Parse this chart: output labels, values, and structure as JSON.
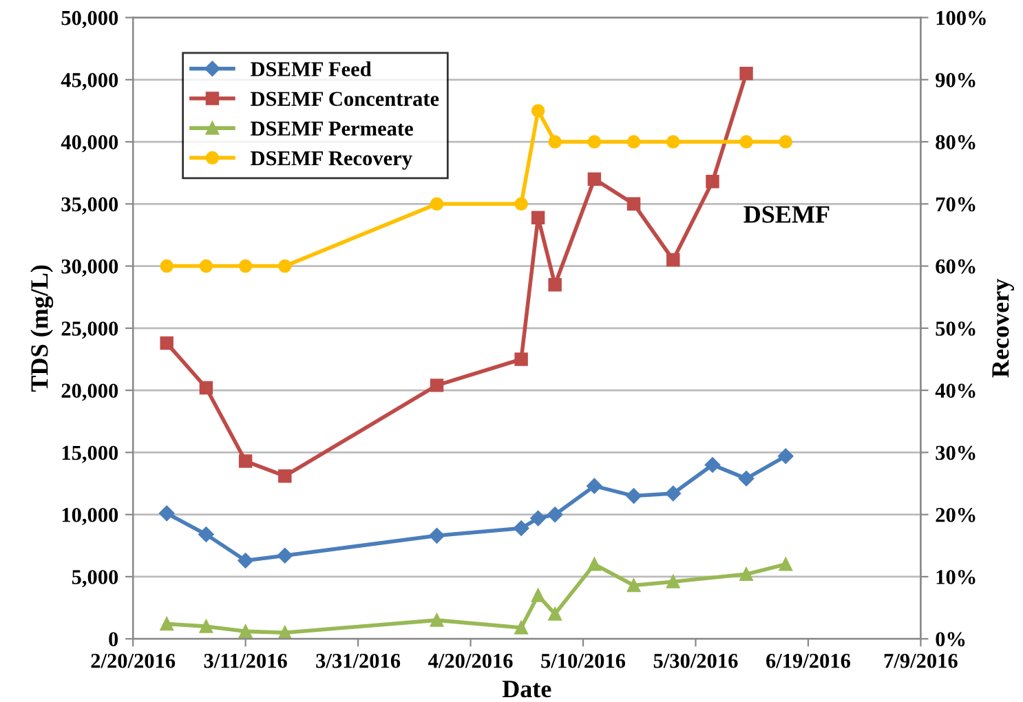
{
  "chart_data": {
    "type": "line",
    "xlabel": "Date",
    "ylabel": "TDS (mg/L)",
    "y2label": "Recovery",
    "x": [
      "2016-02-26",
      "2016-03-04",
      "2016-03-11",
      "2016-03-18",
      "2016-04-14",
      "2016-04-29",
      "2016-05-02",
      "2016-05-05",
      "2016-05-12",
      "2016-05-19",
      "2016-05-26",
      "2016-06-02",
      "2016-06-08",
      "2016-06-15"
    ],
    "series": [
      {
        "name": "DSEMF Feed",
        "color": "#4a7ebb",
        "marker": "diamond",
        "values": [
          10100,
          8400,
          6300,
          6700,
          8300,
          8900,
          9700,
          10000,
          12300,
          11500,
          11700,
          14000,
          12900,
          14700
        ]
      },
      {
        "name": "DSEMF Concentrate",
        "color": "#be4b48",
        "marker": "square",
        "x": [
          "2016-02-26",
          "2016-03-04",
          "2016-03-11",
          "2016-03-18",
          "2016-04-14",
          "2016-04-29",
          "2016-05-02",
          "2016-05-05",
          "2016-05-12",
          "2016-05-19",
          "2016-05-26",
          "2016-06-02",
          "2016-06-08"
        ],
        "values": [
          23800,
          20200,
          14300,
          13100,
          20400,
          22500,
          33900,
          28500,
          37000,
          35000,
          30500,
          36800,
          45500
        ]
      },
      {
        "name": "DSEMF Permeate",
        "color": "#98b954",
        "marker": "triangle",
        "x": [
          "2016-02-26",
          "2016-03-04",
          "2016-03-11",
          "2016-03-18",
          "2016-04-14",
          "2016-04-29",
          "2016-05-02",
          "2016-05-05",
          "2016-05-12",
          "2016-05-19",
          "2016-05-26",
          "2016-06-08",
          "2016-06-15"
        ],
        "values": [
          1200,
          1000,
          600,
          500,
          1500,
          900,
          3500,
          2000,
          6000,
          4300,
          4600,
          5200,
          6000
        ]
      },
      {
        "name": "DSEMF Recovery",
        "color": "#ffc000",
        "marker": "circle",
        "axis": "y2",
        "x": [
          "2016-02-26",
          "2016-03-04",
          "2016-03-11",
          "2016-03-18",
          "2016-04-14",
          "2016-04-29",
          "2016-05-02",
          "2016-05-05",
          "2016-05-12",
          "2016-05-19",
          "2016-05-26",
          "2016-06-08",
          "2016-06-15"
        ],
        "values": [
          60,
          60,
          60,
          60,
          70,
          70,
          85,
          80,
          80,
          80,
          80,
          80,
          80
        ]
      }
    ],
    "xlim": [
      "2016-02-20",
      "2016-07-09"
    ],
    "xticks": [
      {
        "value": "2016-02-20",
        "label": "2/20/2016"
      },
      {
        "value": "2016-03-11",
        "label": "3/11/2016"
      },
      {
        "value": "2016-03-31",
        "label": "3/31/2016"
      },
      {
        "value": "2016-04-20",
        "label": "4/20/2016"
      },
      {
        "value": "2016-05-10",
        "label": "5/10/2016"
      },
      {
        "value": "2016-05-30",
        "label": "5/30/2016"
      },
      {
        "value": "2016-06-19",
        "label": "6/19/2016"
      },
      {
        "value": "2016-07-09",
        "label": "7/9/2016"
      }
    ],
    "ylim": [
      0,
      50000
    ],
    "yticks": [
      0,
      {
        "value": 5000,
        "label": "5,000"
      },
      {
        "value": 10000,
        "label": "10,000"
      },
      {
        "value": 15000,
        "label": "15,000"
      },
      {
        "value": 20000,
        "label": "20,000"
      },
      {
        "value": 25000,
        "label": "25,000"
      },
      {
        "value": 30000,
        "label": "30,000"
      },
      {
        "value": 35000,
        "label": "35,000"
      },
      {
        "value": 40000,
        "label": "40,000"
      },
      {
        "value": 45000,
        "label": "45,000"
      },
      {
        "value": 50000,
        "label": "50,000"
      }
    ],
    "y2lim": [
      0,
      100
    ],
    "y2ticks": [
      {
        "value": 0,
        "label": "0%"
      },
      {
        "value": 10,
        "label": "10%"
      },
      {
        "value": 20,
        "label": "20%"
      },
      {
        "value": 30,
        "label": "30%"
      },
      {
        "value": 40,
        "label": "40%"
      },
      {
        "value": 50,
        "label": "50%"
      },
      {
        "value": 60,
        "label": "60%"
      },
      {
        "value": 70,
        "label": "70%"
      },
      {
        "value": 80,
        "label": "80%"
      },
      {
        "value": 90,
        "label": "90%"
      },
      {
        "value": 100,
        "label": "100%"
      }
    ],
    "grid": "y",
    "legend": "top left",
    "line_style": "solid",
    "annotations": [
      "DSEMF"
    ]
  }
}
